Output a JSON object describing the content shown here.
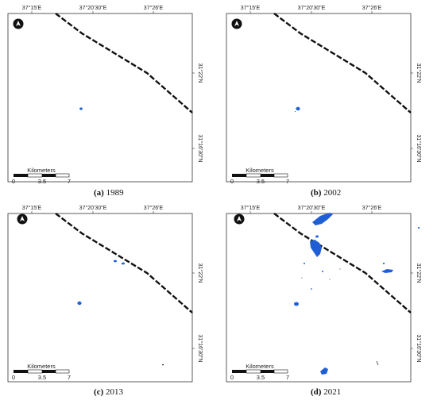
{
  "panels": [
    {
      "id": "a",
      "caption_letter": "(a)",
      "caption_year": "1989",
      "top_ticks": [
        "37°15'E",
        "37°20'30\"E",
        "37°26'E"
      ],
      "right_ticks": [
        "31°22'N",
        "31°16'30\"N"
      ],
      "scale_title": "Kilometers",
      "scale_labels": [
        "0",
        "3.5",
        "7"
      ],
      "north_arrow": "north-arrow-icon"
    },
    {
      "id": "b",
      "caption_letter": "(b)",
      "caption_year": "2002",
      "top_ticks": [
        "37°15'E",
        "37°20'30\"E",
        "37°26'E"
      ],
      "right_ticks": [
        "31°22'N",
        "31°16'30\"N"
      ],
      "scale_title": "Kilometers",
      "scale_labels": [
        "0",
        "3.5",
        "7"
      ],
      "north_arrow": "north-arrow-icon"
    },
    {
      "id": "c",
      "caption_letter": "(c)",
      "caption_year": "2013",
      "top_ticks": [
        "37°15'E",
        "37°20'30\"E",
        "37°26'E"
      ],
      "right_ticks": [
        "31°22'N",
        "31°16'30\"N"
      ],
      "scale_title": "Kilometers",
      "scale_labels": [
        "0",
        "3.5",
        "7"
      ],
      "north_arrow": "north-arrow-icon"
    },
    {
      "id": "d",
      "caption_letter": "(d)",
      "caption_year": "2021",
      "top_ticks": [
        "37°15'E",
        "37°20'30\"E",
        "37°26'E"
      ],
      "right_ticks": [
        "31°22'N",
        "31°16'30\"N"
      ],
      "scale_title": "Kilometers",
      "scale_labels": [
        "0",
        "3.5",
        "7"
      ],
      "north_arrow": "north-arrow-icon"
    }
  ],
  "colors": {
    "water": "#1f5fd6",
    "frame": "#333333",
    "border_line": "#111111"
  }
}
